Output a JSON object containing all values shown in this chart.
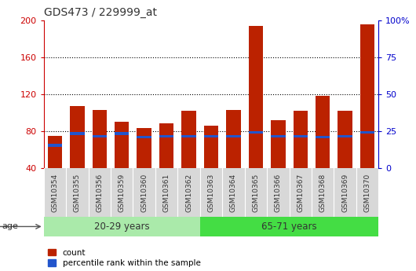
{
  "title": "GDS473 / 229999_at",
  "samples": [
    "GSM10354",
    "GSM10355",
    "GSM10356",
    "GSM10359",
    "GSM10360",
    "GSM10361",
    "GSM10362",
    "GSM10363",
    "GSM10364",
    "GSM10365",
    "GSM10366",
    "GSM10367",
    "GSM10368",
    "GSM10369",
    "GSM10370"
  ],
  "count_values": [
    75,
    107,
    103,
    90,
    83,
    88,
    102,
    86,
    103,
    194,
    92,
    102,
    118,
    102,
    196
  ],
  "percentile_bottom": [
    63,
    76,
    73,
    76,
    72,
    73,
    73,
    73,
    73,
    77,
    73,
    73,
    72,
    73,
    77
  ],
  "percentile_height": [
    3,
    3,
    3,
    3,
    3,
    3,
    3,
    3,
    3,
    3,
    3,
    3,
    3,
    3,
    3
  ],
  "ymin": 40,
  "ymax": 200,
  "group1_label": "20-29 years",
  "group2_label": "65-71 years",
  "group1_count": 7,
  "group2_count": 8,
  "age_label": "age",
  "legend_count": "count",
  "legend_percentile": "percentile rank within the sample",
  "bar_color_red": "#bb2200",
  "bar_color_blue": "#2255cc",
  "group1_bg": "#aaeaaa",
  "group2_bg": "#44dd44",
  "xtick_bg": "#d8d8d8",
  "title_color": "#333333",
  "left_axis_color": "#cc0000",
  "right_axis_color": "#0000cc",
  "yticks_left": [
    40,
    80,
    120,
    160,
    200
  ],
  "yticks_right": [
    0,
    25,
    50,
    75,
    100
  ],
  "grid_lines": [
    80,
    120,
    160
  ],
  "right_yticks_at": [
    40,
    80,
    120,
    160,
    200
  ]
}
